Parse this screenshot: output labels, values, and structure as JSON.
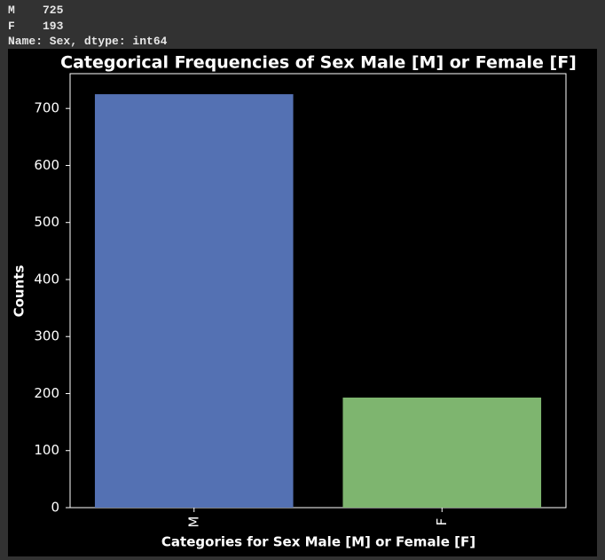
{
  "output": {
    "lines": [
      "M    725",
      "F    193",
      "Name: Sex, dtype: int64"
    ]
  },
  "chart_data": {
    "type": "bar",
    "title": "Categorical Frequencies of Sex Male [M] or Female [F]",
    "x_label": "Categories for Sex Male [M] or Female [F]",
    "y_label": "Counts",
    "categories": [
      "M",
      "F"
    ],
    "values": [
      725,
      193
    ],
    "colors": [
      "#5471b3",
      "#7eb56f"
    ],
    "ylim": [
      0,
      761
    ],
    "yticks": [
      0,
      100,
      200,
      300,
      400,
      500,
      600,
      700
    ],
    "grid": false
  }
}
